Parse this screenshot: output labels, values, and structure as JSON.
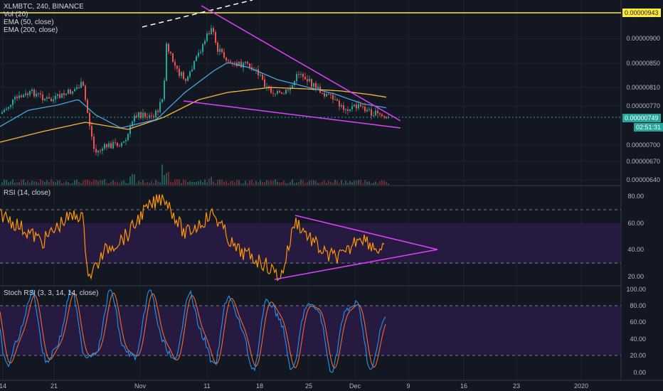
{
  "header": {
    "symbol_line": "XLMBTC, 240, BINANCE",
    "indicators": [
      "Vol (20)",
      "EMA (50, close)",
      "EMA (200, close)"
    ]
  },
  "rsi_label": "RSI (14, close)",
  "stoch_label": "Stoch RSI (3, 3, 14, 14, close)",
  "price_axis": [
    "0.00000900",
    "0.00000850",
    "0.00000810",
    "0.00000770",
    "0.00000700",
    "0.00000670",
    "0.00000640"
  ],
  "price_tags": {
    "resistance": "0.00000943",
    "last": "0.00000749",
    "countdown": "02:51:31"
  },
  "rsi_axis": [
    "80.00",
    "60.00",
    "40.00",
    "20.00"
  ],
  "stoch_axis": [
    "100.00",
    "80.00",
    "60.00",
    "40.00",
    "20.00",
    "0.00"
  ],
  "date_axis": [
    "14",
    "21",
    "Nov",
    "11",
    "18",
    "25",
    "Dec",
    "9",
    "16",
    "23",
    "2020"
  ],
  "colors": {
    "background": "#131722",
    "up_candle": "#26a69a",
    "down_candle": "#ef5350",
    "ema50": "#4aa3df",
    "ema200": "#f5b73b",
    "trendline": "#e040fb",
    "resistance": "#ffeb3b",
    "rsi": "#ff9800",
    "stoch_k": "#2196f3",
    "stoch_d": "#ef6c2c",
    "band_fill": "#2a1b45"
  }
}
